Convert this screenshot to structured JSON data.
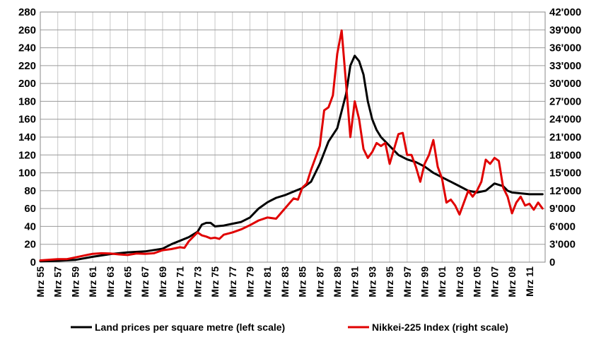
{
  "chart_data": {
    "type": "line",
    "title": "",
    "xlabel": "",
    "ylabel": "",
    "x_ticks": [
      "Mrz 55",
      "Mrz 57",
      "Mrz 59",
      "Mrz 61",
      "Mrz 63",
      "Mrz 65",
      "Mrz 67",
      "Mrz 69",
      "Mrz 71",
      "Mrz 73",
      "Mrz 75",
      "Mrz 77",
      "Mrz 79",
      "Mrz 81",
      "Mrz 83",
      "Mrz 85",
      "Mrz 87",
      "Mrz 89",
      "Mrz 91",
      "Mrz 93",
      "Mrz 95",
      "Mrz 97",
      "Mrz 99",
      "Mrz 01",
      "Mrz 03",
      "Mrz 05",
      "Mrz 07",
      "Mrz 09",
      "Mrz 11"
    ],
    "x_tick_years": [
      1955,
      1957,
      1959,
      1961,
      1963,
      1965,
      1967,
      1969,
      1971,
      1973,
      1975,
      1977,
      1979,
      1981,
      1983,
      1985,
      1987,
      1989,
      1991,
      1993,
      1995,
      1997,
      1999,
      2001,
      2003,
      2005,
      2007,
      2009,
      2011
    ],
    "xlim": [
      1955,
      2012.8
    ],
    "y_left": {
      "lim": [
        0,
        280
      ],
      "ticks": [
        "0",
        "20",
        "40",
        "60",
        "80",
        "100",
        "120",
        "140",
        "160",
        "180",
        "200",
        "220",
        "240",
        "260",
        "280"
      ]
    },
    "y_right": {
      "lim": [
        0,
        42000
      ],
      "ticks": [
        "0",
        "3'000",
        "6'000",
        "9'000",
        "12'000",
        "15'000",
        "18'000",
        "21'000",
        "24'000",
        "27'000",
        "30'000",
        "33'000",
        "36'000",
        "39'000",
        "42'000"
      ]
    },
    "grid": true,
    "legend_position": "bottom",
    "series": [
      {
        "name": "Land prices per square metre (left scale)",
        "axis": "left",
        "color": "#000000",
        "points": [
          [
            1955,
            1
          ],
          [
            1957,
            1.5
          ],
          [
            1959,
            2.5
          ],
          [
            1961,
            6
          ],
          [
            1963,
            9
          ],
          [
            1965,
            11
          ],
          [
            1967,
            12
          ],
          [
            1969,
            15
          ],
          [
            1970,
            20
          ],
          [
            1971,
            24
          ],
          [
            1972,
            28
          ],
          [
            1973,
            34
          ],
          [
            1973.5,
            42
          ],
          [
            1974,
            44
          ],
          [
            1974.5,
            44
          ],
          [
            1975,
            40
          ],
          [
            1976,
            41
          ],
          [
            1977,
            43
          ],
          [
            1978,
            45
          ],
          [
            1979,
            50
          ],
          [
            1980,
            60
          ],
          [
            1981,
            67
          ],
          [
            1982,
            72
          ],
          [
            1983,
            75
          ],
          [
            1984,
            79
          ],
          [
            1985,
            83
          ],
          [
            1986,
            90
          ],
          [
            1987,
            110
          ],
          [
            1988,
            135
          ],
          [
            1989,
            150
          ],
          [
            1990,
            188
          ],
          [
            1990.5,
            220
          ],
          [
            1991,
            231
          ],
          [
            1991.5,
            225
          ],
          [
            1992,
            210
          ],
          [
            1992.5,
            180
          ],
          [
            1993,
            160
          ],
          [
            1993.5,
            148
          ],
          [
            1994,
            140
          ],
          [
            1995,
            130
          ],
          [
            1996,
            120
          ],
          [
            1997,
            115
          ],
          [
            1998,
            112
          ],
          [
            1999,
            107
          ],
          [
            2000,
            100
          ],
          [
            2001,
            95
          ],
          [
            2002,
            90
          ],
          [
            2003,
            85
          ],
          [
            2004,
            80
          ],
          [
            2005,
            78
          ],
          [
            2006,
            80
          ],
          [
            2007,
            88
          ],
          [
            2008,
            85
          ],
          [
            2008.5,
            80
          ],
          [
            2009,
            78
          ],
          [
            2010,
            77
          ],
          [
            2011,
            76
          ],
          [
            2012.5,
            76
          ]
        ]
      },
      {
        "name": "Nikkei-225 Index (right scale)",
        "axis": "right",
        "color": "#e00000",
        "points": [
          [
            1955,
            300
          ],
          [
            1956,
            400
          ],
          [
            1957,
            500
          ],
          [
            1958,
            500
          ],
          [
            1959,
            800
          ],
          [
            1960,
            1100
          ],
          [
            1961,
            1400
          ],
          [
            1962,
            1500
          ],
          [
            1963,
            1450
          ],
          [
            1964,
            1300
          ],
          [
            1965,
            1200
          ],
          [
            1966,
            1450
          ],
          [
            1967,
            1400
          ],
          [
            1968,
            1500
          ],
          [
            1969,
            2000
          ],
          [
            1970,
            2200
          ],
          [
            1971,
            2500
          ],
          [
            1971.5,
            2400
          ],
          [
            1972,
            3500
          ],
          [
            1973,
            5000
          ],
          [
            1973.5,
            4500
          ],
          [
            1974,
            4300
          ],
          [
            1974.5,
            4000
          ],
          [
            1975,
            4100
          ],
          [
            1975.5,
            3900
          ],
          [
            1976,
            4600
          ],
          [
            1977,
            5000
          ],
          [
            1978,
            5500
          ],
          [
            1979,
            6200
          ],
          [
            1980,
            7000
          ],
          [
            1981,
            7500
          ],
          [
            1982,
            7300
          ],
          [
            1983,
            9000
          ],
          [
            1984,
            10700
          ],
          [
            1984.5,
            10500
          ],
          [
            1985,
            12500
          ],
          [
            1985.5,
            13200
          ],
          [
            1986,
            15500
          ],
          [
            1987,
            19500
          ],
          [
            1987.5,
            25500
          ],
          [
            1988,
            26000
          ],
          [
            1988.5,
            28000
          ],
          [
            1989,
            35000
          ],
          [
            1989.5,
            38900
          ],
          [
            1990,
            30000
          ],
          [
            1990.5,
            21000
          ],
          [
            1991,
            27000
          ],
          [
            1991.5,
            24000
          ],
          [
            1992,
            19000
          ],
          [
            1992.5,
            17500
          ],
          [
            1993,
            18500
          ],
          [
            1993.5,
            20000
          ],
          [
            1994,
            19500
          ],
          [
            1994.5,
            20000
          ],
          [
            1995,
            16500
          ],
          [
            1996,
            21500
          ],
          [
            1996.5,
            21700
          ],
          [
            1997,
            18000
          ],
          [
            1997.5,
            18000
          ],
          [
            1998,
            16000
          ],
          [
            1998.5,
            13500
          ],
          [
            1999,
            16500
          ],
          [
            1999.5,
            18000
          ],
          [
            2000,
            20500
          ],
          [
            2000.5,
            16000
          ],
          [
            2001,
            14000
          ],
          [
            2001.5,
            10000
          ],
          [
            2002,
            10500
          ],
          [
            2002.5,
            9500
          ],
          [
            2003,
            8000
          ],
          [
            2003.5,
            10000
          ],
          [
            2004,
            12000
          ],
          [
            2004.5,
            11000
          ],
          [
            2005,
            12000
          ],
          [
            2005.5,
            13500
          ],
          [
            2006,
            17200
          ],
          [
            2006.5,
            16500
          ],
          [
            2007,
            17500
          ],
          [
            2007.5,
            17000
          ],
          [
            2008,
            12500
          ],
          [
            2008.5,
            11000
          ],
          [
            2009,
            8200
          ],
          [
            2009.5,
            10000
          ],
          [
            2010,
            11000
          ],
          [
            2010.5,
            9500
          ],
          [
            2011,
            9800
          ],
          [
            2011.5,
            8800
          ],
          [
            2012,
            10000
          ],
          [
            2012.5,
            9000
          ]
        ]
      }
    ]
  }
}
